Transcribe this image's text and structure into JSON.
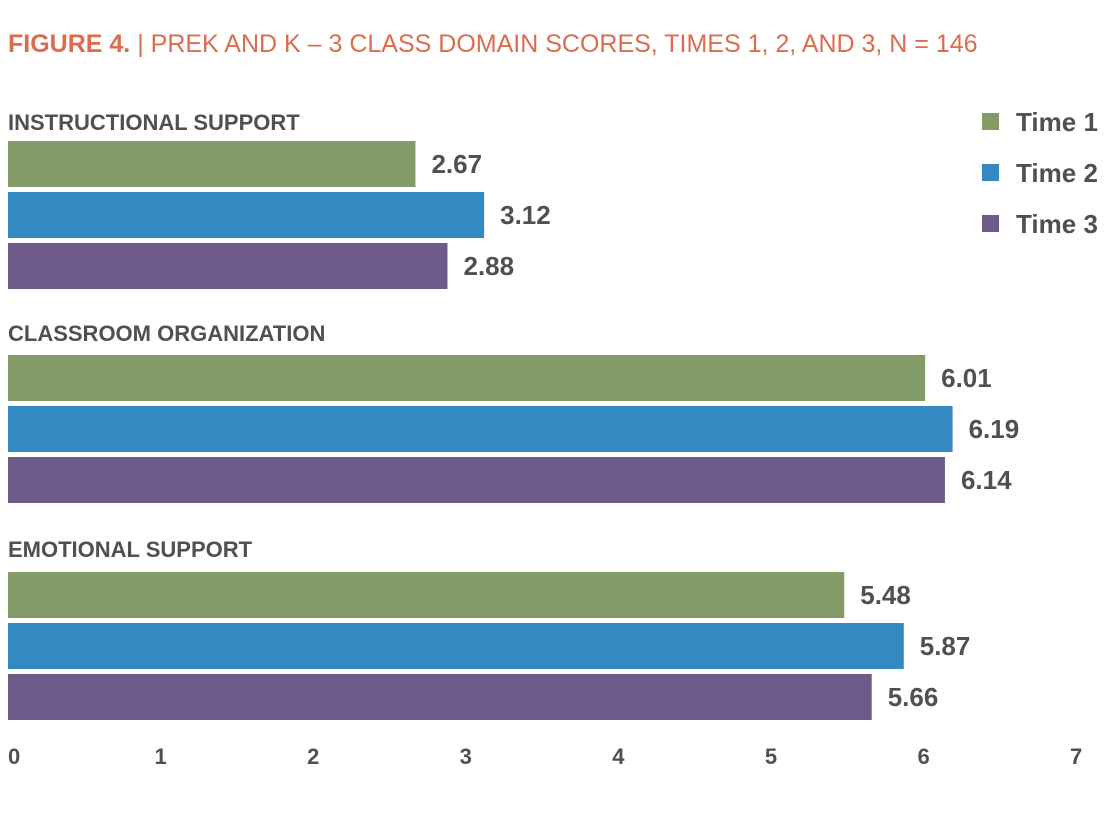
{
  "figure": {
    "label": "FIGURE 4.",
    "separator": " | ",
    "title": "PREK AND K – 3 CLASS DOMAIN SCORES, TIMES 1, 2, AND 3, N = 146"
  },
  "chart_data": {
    "type": "bar",
    "orientation": "horizontal",
    "title": "FIGURE 4. | PREK AND K – 3 CLASS DOMAIN SCORES, TIMES 1, 2, AND 3, N = 146",
    "categories": [
      "INSTRUCTIONAL SUPPORT",
      "CLASSROOM ORGANIZATION",
      "EMOTIONAL SUPPORT"
    ],
    "series": [
      {
        "name": "Time 1",
        "color": "#839b66",
        "values": [
          2.67,
          6.01,
          5.48
        ]
      },
      {
        "name": "Time 2",
        "color": "#3589c2",
        "values": [
          3.12,
          6.19,
          5.87
        ]
      },
      {
        "name": "Time 3",
        "color": "#6e5a89",
        "values": [
          2.88,
          6.14,
          5.66
        ]
      }
    ],
    "value_labels": [
      [
        "2.67",
        "6.01",
        "5.48"
      ],
      [
        "3.12",
        "6.19",
        "5.87"
      ],
      [
        "2.88",
        "6.14",
        "5.66"
      ]
    ],
    "xlim": [
      0,
      7
    ],
    "xticks": [
      "0",
      "1",
      "2",
      "3",
      "4",
      "5",
      "6",
      "7"
    ],
    "xlabel": "",
    "ylabel": "",
    "grid": false,
    "legend_position": "top-right"
  }
}
